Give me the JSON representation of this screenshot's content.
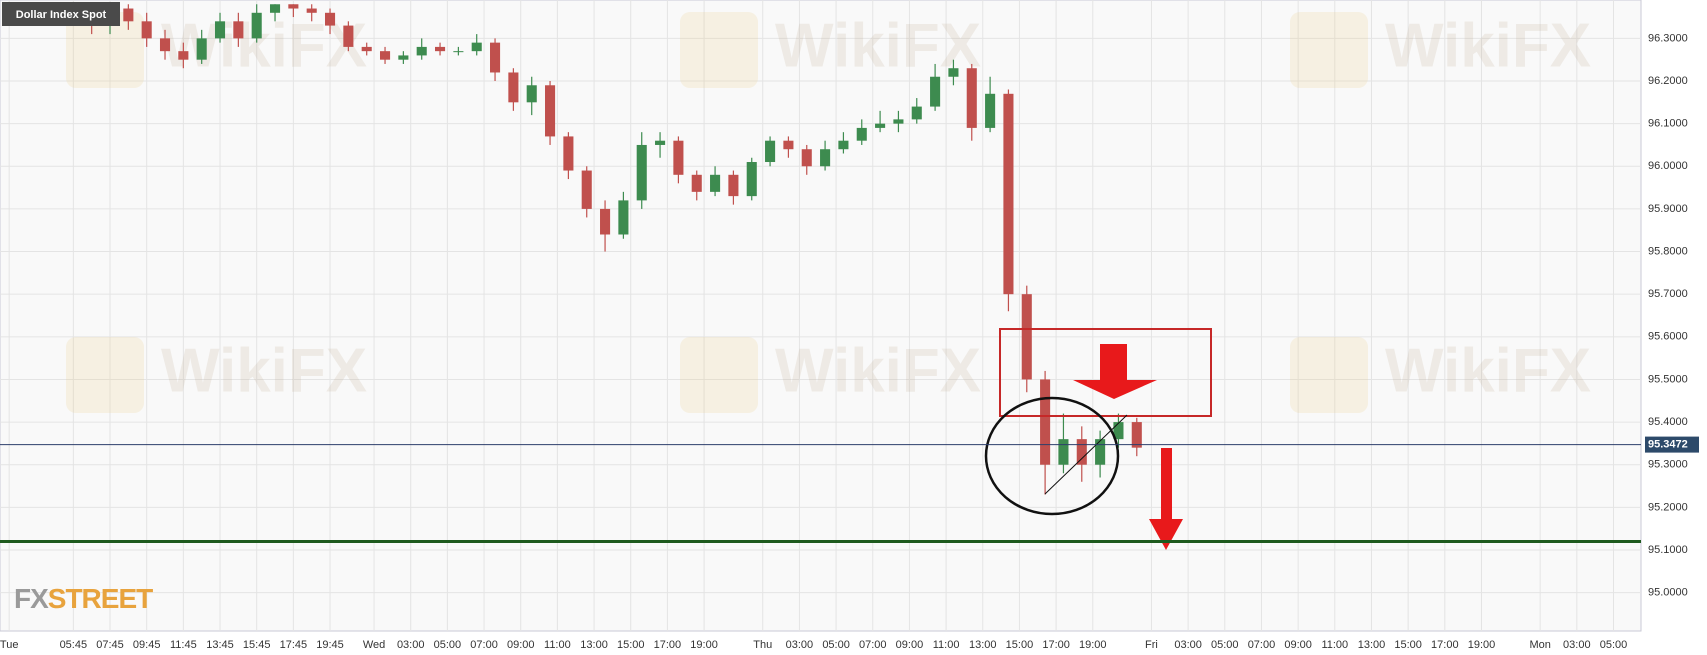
{
  "chart_data": {
    "type": "candlestick",
    "title": "Dollar Index Spot",
    "x": [
      4,
      5,
      6,
      7,
      8,
      9,
      10,
      11,
      12,
      13,
      14,
      15,
      16,
      17,
      18,
      19,
      20,
      21,
      22,
      23,
      24,
      25,
      26,
      27,
      28,
      29,
      30,
      31,
      32,
      33,
      34,
      35,
      36,
      37,
      38,
      39,
      40,
      41,
      42,
      43,
      44,
      45,
      46,
      47,
      48,
      49,
      50,
      51,
      52,
      53,
      54,
      55,
      56,
      57,
      58,
      59,
      60,
      61,
      62
    ],
    "open": [
      96.36,
      96.35,
      96.33,
      96.37,
      96.34,
      96.3,
      96.27,
      96.25,
      96.3,
      96.34,
      96.3,
      96.36,
      96.38,
      96.37,
      96.36,
      96.33,
      96.28,
      96.27,
      96.25,
      96.26,
      96.28,
      96.27,
      96.27,
      96.29,
      96.22,
      96.15,
      96.19,
      96.07,
      95.99,
      95.9,
      95.84,
      95.92,
      96.05,
      96.06,
      95.98,
      95.94,
      95.98,
      95.93,
      96.01,
      96.06,
      96.04,
      96.0,
      96.04,
      96.06,
      96.09,
      96.1,
      96.11,
      96.14,
      96.21,
      96.23,
      96.09,
      96.17,
      95.7,
      95.5,
      95.3,
      95.36,
      95.3,
      95.36,
      95.4
    ],
    "high": [
      96.38,
      96.37,
      96.38,
      96.38,
      96.36,
      96.32,
      96.29,
      96.32,
      96.36,
      96.36,
      96.38,
      96.38,
      96.38,
      96.38,
      96.37,
      96.34,
      96.29,
      96.28,
      96.27,
      96.3,
      96.29,
      96.28,
      96.31,
      96.3,
      96.23,
      96.21,
      96.2,
      96.08,
      96.0,
      95.92,
      95.94,
      96.08,
      96.08,
      96.07,
      95.99,
      96.0,
      95.99,
      96.02,
      96.07,
      96.07,
      96.05,
      96.06,
      96.08,
      96.11,
      96.13,
      96.13,
      96.16,
      96.24,
      96.25,
      96.24,
      96.21,
      96.18,
      95.72,
      95.52,
      95.42,
      95.39,
      95.38,
      95.42,
      95.41
    ],
    "low": [
      96.33,
      96.31,
      96.31,
      96.32,
      96.28,
      96.25,
      96.23,
      96.24,
      96.29,
      96.28,
      96.29,
      96.34,
      96.35,
      96.34,
      96.31,
      96.27,
      96.26,
      96.24,
      96.24,
      96.25,
      96.26,
      96.26,
      96.26,
      96.2,
      96.13,
      96.12,
      96.05,
      95.97,
      95.88,
      95.8,
      95.83,
      95.9,
      96.02,
      95.96,
      95.92,
      95.93,
      95.91,
      95.92,
      96.0,
      96.02,
      95.98,
      95.99,
      96.03,
      96.05,
      96.08,
      96.08,
      96.1,
      96.13,
      96.19,
      96.06,
      96.08,
      95.66,
      95.47,
      95.23,
      95.28,
      95.26,
      95.27,
      95.34,
      95.32
    ],
    "close": [
      96.35,
      96.33,
      96.37,
      96.34,
      96.3,
      96.27,
      96.25,
      96.3,
      96.34,
      96.3,
      96.36,
      96.38,
      96.37,
      96.36,
      96.33,
      96.28,
      96.27,
      96.25,
      96.26,
      96.28,
      96.27,
      96.27,
      96.29,
      96.22,
      96.15,
      96.19,
      96.07,
      95.99,
      95.9,
      95.84,
      95.92,
      96.05,
      96.06,
      95.98,
      95.94,
      95.98,
      95.93,
      96.01,
      96.06,
      96.04,
      96.0,
      96.04,
      96.06,
      96.09,
      96.1,
      96.11,
      96.14,
      96.21,
      96.23,
      96.09,
      96.17,
      95.7,
      95.5,
      95.3,
      95.36,
      95.3,
      95.36,
      95.4,
      95.34
    ],
    "up_color": "#3d8b4f",
    "down_color": "#c0504d",
    "xlim": [
      0,
      89.5
    ],
    "xticks": [
      {
        "value": 0.5,
        "label": "Tue"
      },
      {
        "value": 4,
        "label": "05:45"
      },
      {
        "value": 6,
        "label": "07:45"
      },
      {
        "value": 8,
        "label": "09:45"
      },
      {
        "value": 10,
        "label": "11:45"
      },
      {
        "value": 12,
        "label": "13:45"
      },
      {
        "value": 14,
        "label": "15:45"
      },
      {
        "value": 16,
        "label": "17:45"
      },
      {
        "value": 18,
        "label": "19:45"
      },
      {
        "value": 20.4,
        "label": "Wed"
      },
      {
        "value": 22.4,
        "label": "03:00"
      },
      {
        "value": 24.4,
        "label": "05:00"
      },
      {
        "value": 26.4,
        "label": "07:00"
      },
      {
        "value": 28.4,
        "label": "09:00"
      },
      {
        "value": 30.4,
        "label": "11:00"
      },
      {
        "value": 32.4,
        "label": "13:00"
      },
      {
        "value": 34.4,
        "label": "15:00"
      },
      {
        "value": 36.4,
        "label": "17:00"
      },
      {
        "value": 38.4,
        "label": "19:00"
      },
      {
        "value": 41.6,
        "label": "Thu"
      },
      {
        "value": 43.6,
        "label": "03:00"
      },
      {
        "value": 45.6,
        "label": "05:00"
      },
      {
        "value": 47.6,
        "label": "07:00"
      },
      {
        "value": 49.6,
        "label": "09:00"
      },
      {
        "value": 51.6,
        "label": "11:00"
      },
      {
        "value": 53.6,
        "label": "13:00"
      },
      {
        "value": 55.6,
        "label": "15:00"
      },
      {
        "value": 57.6,
        "label": "17:00"
      },
      {
        "value": 59.6,
        "label": "19:00"
      },
      {
        "value": 62.8,
        "label": "Fri"
      },
      {
        "value": 64.8,
        "label": "03:00"
      },
      {
        "value": 66.8,
        "label": "05:00"
      },
      {
        "value": 68.8,
        "label": "07:00"
      },
      {
        "value": 70.8,
        "label": "09:00"
      },
      {
        "value": 72.8,
        "label": "11:00"
      },
      {
        "value": 74.8,
        "label": "13:00"
      },
      {
        "value": 76.8,
        "label": "15:00"
      },
      {
        "value": 78.8,
        "label": "17:00"
      },
      {
        "value": 80.8,
        "label": "19:00"
      },
      {
        "value": 84,
        "label": "Mon"
      },
      {
        "value": 86,
        "label": "03:00"
      },
      {
        "value": 88,
        "label": "05:00"
      }
    ],
    "ylim": [
      94.91,
      96.39
    ],
    "yticks": [
      {
        "value": 95.0,
        "label": "95.0000"
      },
      {
        "value": 95.1,
        "label": "95.1000"
      },
      {
        "value": 95.2,
        "label": "95.2000"
      },
      {
        "value": 95.3,
        "label": "95.3000"
      },
      {
        "value": 95.4,
        "label": "95.4000"
      },
      {
        "value": 95.5,
        "label": "95.5000"
      },
      {
        "value": 95.6,
        "label": "95.6000"
      },
      {
        "value": 95.7,
        "label": "95.7000"
      },
      {
        "value": 95.8,
        "label": "95.8000"
      },
      {
        "value": 95.9,
        "label": "95.9000"
      },
      {
        "value": 96.0,
        "label": "96.0000"
      },
      {
        "value": 96.1,
        "label": "96.1000"
      },
      {
        "value": 96.2,
        "label": "96.2000"
      },
      {
        "value": 96.3,
        "label": "96.3000"
      }
    ],
    "grid": true,
    "last_price": 95.3472,
    "support_level": 95.12,
    "watermark": "WikiFX",
    "logo": [
      "FX",
      "STREET"
    ]
  }
}
